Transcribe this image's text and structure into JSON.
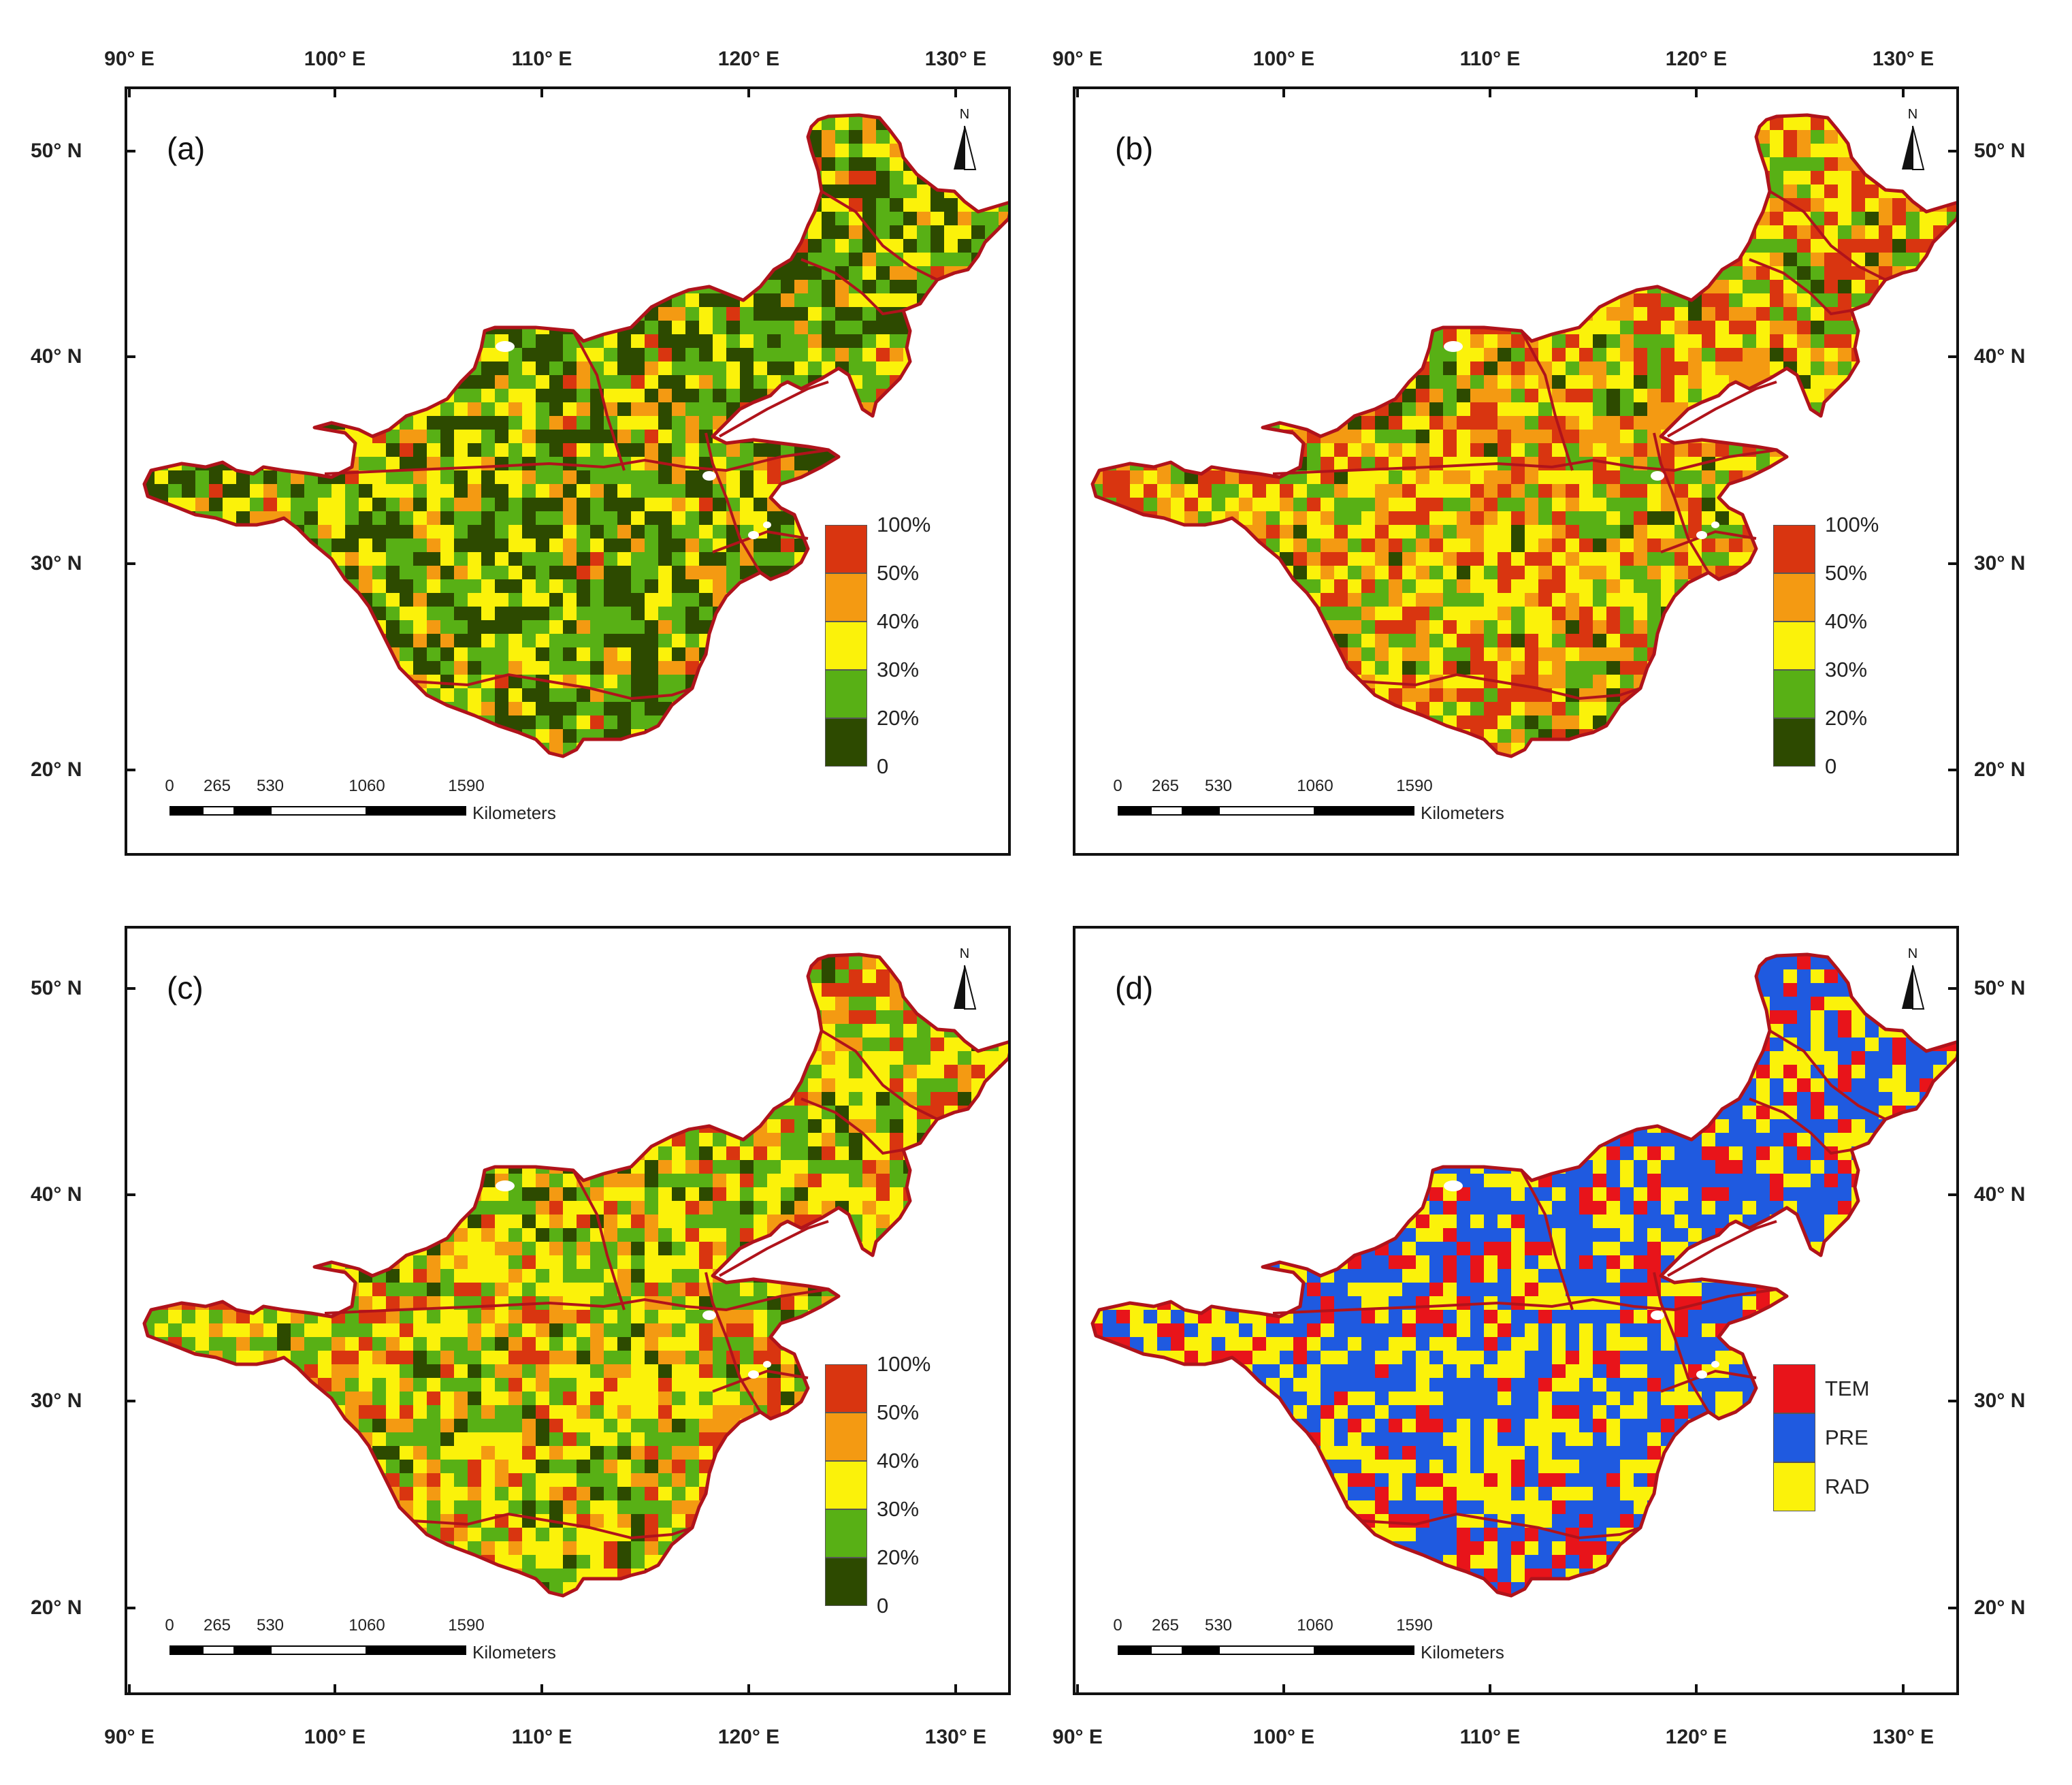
{
  "figure": {
    "lon_labels": [
      "90° E",
      "100° E",
      "110° E",
      "120° E",
      "130° E"
    ],
    "lat_labels": [
      "50° N",
      "40° N",
      "30° N",
      "20° N"
    ]
  },
  "panels": [
    {
      "id": "a",
      "tag": "(a)",
      "legend_type": "percent",
      "palette": [
        "#2d4a00",
        "#58b015",
        "#fbf20a",
        "#f49a12",
        "#d93510"
      ],
      "weights": [
        0.32,
        0.3,
        0.22,
        0.11,
        0.05
      ]
    },
    {
      "id": "b",
      "tag": "(b)",
      "legend_type": "percent",
      "palette": [
        "#2d4a00",
        "#58b015",
        "#fbf20a",
        "#f49a12",
        "#d93510"
      ],
      "weights": [
        0.05,
        0.22,
        0.28,
        0.2,
        0.25
      ]
    },
    {
      "id": "c",
      "tag": "(c)",
      "legend_type": "percent",
      "palette": [
        "#2d4a00",
        "#58b015",
        "#fbf20a",
        "#f49a12",
        "#d93510"
      ],
      "weights": [
        0.08,
        0.28,
        0.32,
        0.18,
        0.14
      ]
    },
    {
      "id": "d",
      "tag": "(d)",
      "legend_type": "category",
      "palette": [
        "#e8141a",
        "#1f5ae0",
        "#fbf20a"
      ],
      "weights": [
        0.2,
        0.46,
        0.34
      ]
    }
  ],
  "legend_percent": {
    "colors": [
      "#d93510",
      "#f49a12",
      "#fbf20a",
      "#58b015",
      "#2d4a00"
    ],
    "ticks": [
      "100%",
      "50%",
      "40%",
      "30%",
      "20%",
      "0"
    ]
  },
  "legend_category": {
    "items": [
      {
        "label": "TEM",
        "color": "#e8141a"
      },
      {
        "label": "PRE",
        "color": "#1f5ae0"
      },
      {
        "label": "RAD",
        "color": "#fbf20a"
      }
    ]
  },
  "scalebar": {
    "numbers": [
      "0",
      "265",
      "530",
      "1060",
      "1590"
    ],
    "unit": "Kilometers"
  },
  "north_arrow": {
    "letter": "N"
  },
  "boundary_color": "#b0131b"
}
